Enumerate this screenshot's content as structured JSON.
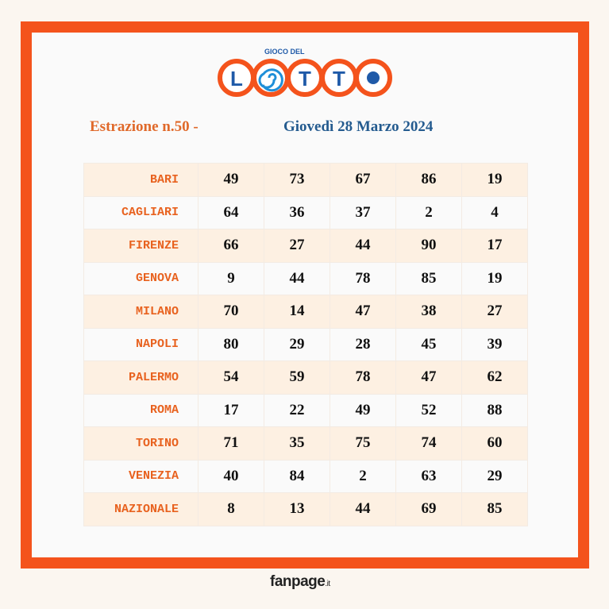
{
  "logo": {
    "top": "GIOCO DEL",
    "letters": [
      "L",
      "T",
      "T"
    ]
  },
  "header": {
    "draw": "Estrazione n.50 -",
    "date": "Giovedì 28 Marzo 2024"
  },
  "table": {
    "rows": [
      [
        "BARI",
        49,
        73,
        67,
        86,
        19
      ],
      [
        "CAGLIARI",
        64,
        36,
        37,
        2,
        4
      ],
      [
        "FIRENZE",
        66,
        27,
        44,
        90,
        17
      ],
      [
        "GENOVA",
        9,
        44,
        78,
        85,
        19
      ],
      [
        "MILANO",
        70,
        14,
        47,
        38,
        27
      ],
      [
        "NAPOLI",
        80,
        29,
        28,
        45,
        39
      ],
      [
        "PALERMO",
        54,
        59,
        78,
        47,
        62
      ],
      [
        "ROMA",
        17,
        22,
        49,
        52,
        88
      ],
      [
        "TORINO",
        71,
        35,
        75,
        74,
        60
      ],
      [
        "VENEZIA",
        40,
        84,
        2,
        63,
        29
      ],
      [
        "NAZIONALE",
        8,
        13,
        44,
        69,
        85
      ]
    ]
  },
  "footer": {
    "brand": "fanpage",
    "suffix": ".it"
  }
}
